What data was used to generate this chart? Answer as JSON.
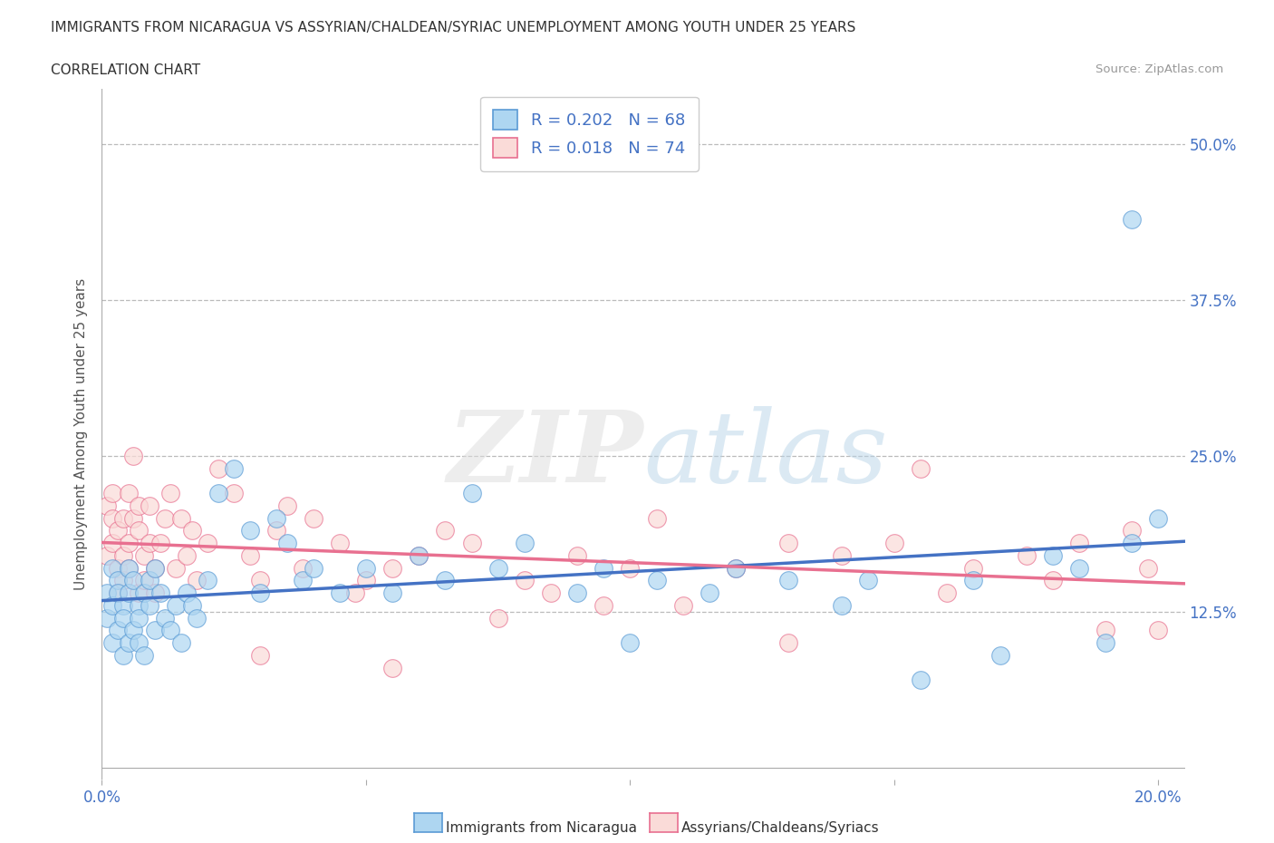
{
  "title": "IMMIGRANTS FROM NICARAGUA VS ASSYRIAN/CHALDEAN/SYRIAC UNEMPLOYMENT AMONG YOUTH UNDER 25 YEARS",
  "subtitle": "CORRELATION CHART",
  "source": "Source: ZipAtlas.com",
  "ylabel": "Unemployment Among Youth under 25 years",
  "xlim": [
    0.0,
    0.205
  ],
  "ylim": [
    -0.01,
    0.545
  ],
  "xticks": [
    0.0,
    0.05,
    0.1,
    0.15,
    0.2
  ],
  "yticks": [
    0.0,
    0.125,
    0.25,
    0.375,
    0.5
  ],
  "ytick_labels_right": [
    "",
    "12.5%",
    "25.0%",
    "37.5%",
    "50.0%"
  ],
  "xtick_labels": [
    "0.0%",
    "",
    "",
    "",
    "20.0%"
  ],
  "blue_R": 0.202,
  "blue_N": 68,
  "pink_R": 0.018,
  "pink_N": 74,
  "blue_color": "#AED6F1",
  "blue_edge": "#5B9BD5",
  "pink_color": "#FADBD8",
  "pink_edge": "#E87090",
  "blue_line_color": "#4472C4",
  "pink_line_color": "#E87090",
  "label_blue": "Immigrants from Nicaragua",
  "label_pink": "Assyrians/Chaldeans/Syriacs",
  "watermark_zip": "ZIP",
  "watermark_atlas": "atlas",
  "bg_color": "#FFFFFF",
  "grid_color": "#BBBBBB",
  "tick_label_color": "#4472C4",
  "title_color": "#333333",
  "blue_x": [
    0.001,
    0.001,
    0.002,
    0.002,
    0.002,
    0.003,
    0.003,
    0.003,
    0.004,
    0.004,
    0.004,
    0.005,
    0.005,
    0.005,
    0.006,
    0.006,
    0.007,
    0.007,
    0.007,
    0.008,
    0.008,
    0.009,
    0.009,
    0.01,
    0.01,
    0.011,
    0.012,
    0.013,
    0.014,
    0.015,
    0.016,
    0.017,
    0.018,
    0.02,
    0.022,
    0.025,
    0.028,
    0.03,
    0.033,
    0.035,
    0.038,
    0.04,
    0.045,
    0.05,
    0.055,
    0.06,
    0.065,
    0.07,
    0.075,
    0.08,
    0.09,
    0.095,
    0.1,
    0.105,
    0.115,
    0.12,
    0.13,
    0.14,
    0.145,
    0.155,
    0.165,
    0.17,
    0.18,
    0.185,
    0.19,
    0.195,
    0.2,
    0.195
  ],
  "blue_y": [
    0.14,
    0.12,
    0.1,
    0.16,
    0.13,
    0.15,
    0.11,
    0.14,
    0.09,
    0.13,
    0.12,
    0.16,
    0.1,
    0.14,
    0.11,
    0.15,
    0.13,
    0.12,
    0.1,
    0.14,
    0.09,
    0.13,
    0.15,
    0.11,
    0.16,
    0.14,
    0.12,
    0.11,
    0.13,
    0.1,
    0.14,
    0.13,
    0.12,
    0.15,
    0.22,
    0.24,
    0.19,
    0.14,
    0.2,
    0.18,
    0.15,
    0.16,
    0.14,
    0.16,
    0.14,
    0.17,
    0.15,
    0.22,
    0.16,
    0.18,
    0.14,
    0.16,
    0.1,
    0.15,
    0.14,
    0.16,
    0.15,
    0.13,
    0.15,
    0.07,
    0.15,
    0.09,
    0.17,
    0.16,
    0.1,
    0.18,
    0.2,
    0.44
  ],
  "pink_x": [
    0.001,
    0.001,
    0.002,
    0.002,
    0.002,
    0.003,
    0.003,
    0.003,
    0.004,
    0.004,
    0.004,
    0.005,
    0.005,
    0.005,
    0.006,
    0.006,
    0.007,
    0.007,
    0.007,
    0.008,
    0.008,
    0.009,
    0.009,
    0.01,
    0.01,
    0.011,
    0.012,
    0.013,
    0.014,
    0.015,
    0.016,
    0.017,
    0.018,
    0.02,
    0.022,
    0.025,
    0.028,
    0.03,
    0.033,
    0.035,
    0.038,
    0.04,
    0.045,
    0.05,
    0.055,
    0.06,
    0.065,
    0.07,
    0.08,
    0.085,
    0.09,
    0.1,
    0.105,
    0.11,
    0.12,
    0.13,
    0.14,
    0.15,
    0.155,
    0.16,
    0.165,
    0.175,
    0.18,
    0.185,
    0.19,
    0.195,
    0.198,
    0.2,
    0.055,
    0.13,
    0.095,
    0.075,
    0.048,
    0.03
  ],
  "pink_y": [
    0.17,
    0.21,
    0.2,
    0.22,
    0.18,
    0.16,
    0.19,
    0.14,
    0.2,
    0.17,
    0.15,
    0.22,
    0.18,
    0.16,
    0.2,
    0.25,
    0.19,
    0.14,
    0.21,
    0.17,
    0.15,
    0.21,
    0.18,
    0.16,
    0.14,
    0.18,
    0.2,
    0.22,
    0.16,
    0.2,
    0.17,
    0.19,
    0.15,
    0.18,
    0.24,
    0.22,
    0.17,
    0.15,
    0.19,
    0.21,
    0.16,
    0.2,
    0.18,
    0.15,
    0.16,
    0.17,
    0.19,
    0.18,
    0.15,
    0.14,
    0.17,
    0.16,
    0.2,
    0.13,
    0.16,
    0.18,
    0.17,
    0.18,
    0.24,
    0.14,
    0.16,
    0.17,
    0.15,
    0.18,
    0.11,
    0.19,
    0.16,
    0.11,
    0.08,
    0.1,
    0.13,
    0.12,
    0.14,
    0.09
  ]
}
